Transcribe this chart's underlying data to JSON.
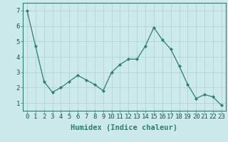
{
  "x": [
    0,
    1,
    2,
    3,
    4,
    5,
    6,
    7,
    8,
    9,
    10,
    11,
    12,
    13,
    14,
    15,
    16,
    17,
    18,
    19,
    20,
    21,
    22,
    23
  ],
  "y": [
    7.0,
    4.7,
    2.4,
    1.7,
    2.0,
    2.4,
    2.8,
    2.5,
    2.2,
    1.8,
    3.0,
    3.5,
    3.85,
    3.85,
    4.7,
    5.9,
    5.1,
    4.5,
    3.4,
    2.2,
    1.3,
    1.55,
    1.4,
    0.85
  ],
  "xlabel": "Humidex (Indice chaleur)",
  "ylim": [
    0.5,
    7.5
  ],
  "xlim": [
    -0.5,
    23.5
  ],
  "yticks": [
    1,
    2,
    3,
    4,
    5,
    6,
    7
  ],
  "xticks": [
    0,
    1,
    2,
    3,
    4,
    5,
    6,
    7,
    8,
    9,
    10,
    11,
    12,
    13,
    14,
    15,
    16,
    17,
    18,
    19,
    20,
    21,
    22,
    23
  ],
  "line_color": "#2e7d6e",
  "marker": "D",
  "marker_size": 2,
  "background_color": "#cceae7",
  "grid_color": "#b0d4d0",
  "xlabel_fontsize": 7.5,
  "tick_fontsize": 6.5
}
